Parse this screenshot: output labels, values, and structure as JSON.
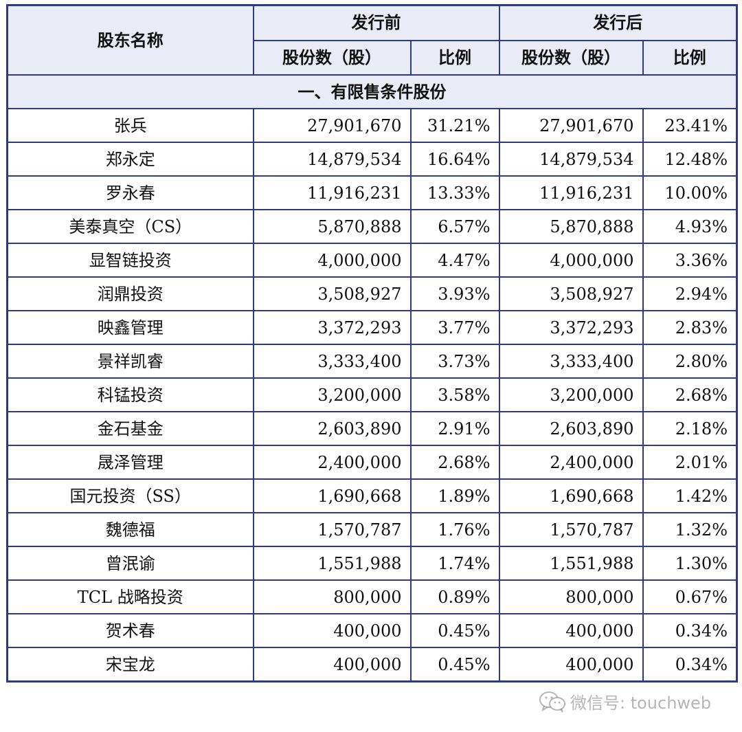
{
  "header": {
    "shareholder_name": "股东名称",
    "before_issue": "发行前",
    "after_issue": "发行后",
    "shares_label": "股份数（股）",
    "ratio_label": "比例"
  },
  "section": {
    "title": "一、有限售条件股份"
  },
  "rows": [
    {
      "name": "张兵",
      "pre_shares": "27,901,670",
      "pre_ratio": "31.21%",
      "post_shares": "27,901,670",
      "post_ratio": "23.41%"
    },
    {
      "name": "郑永定",
      "pre_shares": "14,879,534",
      "pre_ratio": "16.64%",
      "post_shares": "14,879,534",
      "post_ratio": "12.48%"
    },
    {
      "name": "罗永春",
      "pre_shares": "11,916,231",
      "pre_ratio": "13.33%",
      "post_shares": "11,916,231",
      "post_ratio": "10.00%"
    },
    {
      "name": "美泰真空（CS）",
      "pre_shares": "5,870,888",
      "pre_ratio": "6.57%",
      "post_shares": "5,870,888",
      "post_ratio": "4.93%"
    },
    {
      "name": "显智链投资",
      "pre_shares": "4,000,000",
      "pre_ratio": "4.47%",
      "post_shares": "4,000,000",
      "post_ratio": "3.36%"
    },
    {
      "name": "润鼎投资",
      "pre_shares": "3,508,927",
      "pre_ratio": "3.93%",
      "post_shares": "3,508,927",
      "post_ratio": "2.94%"
    },
    {
      "name": "映鑫管理",
      "pre_shares": "3,372,293",
      "pre_ratio": "3.77%",
      "post_shares": "3,372,293",
      "post_ratio": "2.83%"
    },
    {
      "name": "景祥凯睿",
      "pre_shares": "3,333,400",
      "pre_ratio": "3.73%",
      "post_shares": "3,333,400",
      "post_ratio": "2.80%"
    },
    {
      "name": "科锰投资",
      "pre_shares": "3,200,000",
      "pre_ratio": "3.58%",
      "post_shares": "3,200,000",
      "post_ratio": "2.68%"
    },
    {
      "name": "金石基金",
      "pre_shares": "2,603,890",
      "pre_ratio": "2.91%",
      "post_shares": "2,603,890",
      "post_ratio": "2.18%"
    },
    {
      "name": "晟泽管理",
      "pre_shares": "2,400,000",
      "pre_ratio": "2.68%",
      "post_shares": "2,400,000",
      "post_ratio": "2.01%"
    },
    {
      "name": "国元投资（SS）",
      "pre_shares": "1,690,668",
      "pre_ratio": "1.89%",
      "post_shares": "1,690,668",
      "post_ratio": "1.42%"
    },
    {
      "name": "魏德福",
      "pre_shares": "1,570,787",
      "pre_ratio": "1.76%",
      "post_shares": "1,570,787",
      "post_ratio": "1.32%"
    },
    {
      "name": "曾泯谕",
      "pre_shares": "1,551,988",
      "pre_ratio": "1.74%",
      "post_shares": "1,551,988",
      "post_ratio": "1.30%"
    },
    {
      "name": "TCL 战略投资",
      "pre_shares": "800,000",
      "pre_ratio": "0.89%",
      "post_shares": "800,000",
      "post_ratio": "0.67%"
    },
    {
      "name": "贺术春",
      "pre_shares": "400,000",
      "pre_ratio": "0.45%",
      "post_shares": "400,000",
      "post_ratio": "0.34%"
    },
    {
      "name": "宋宝龙",
      "pre_shares": "400,000",
      "pre_ratio": "0.45%",
      "post_shares": "400,000",
      "post_ratio": "0.34%"
    }
  ],
  "watermark": {
    "text": "微信号: touchweb",
    "icon": "wechat-icon"
  },
  "colors": {
    "border": "#2d3a8c",
    "header_bg": "#e9ebf7"
  }
}
